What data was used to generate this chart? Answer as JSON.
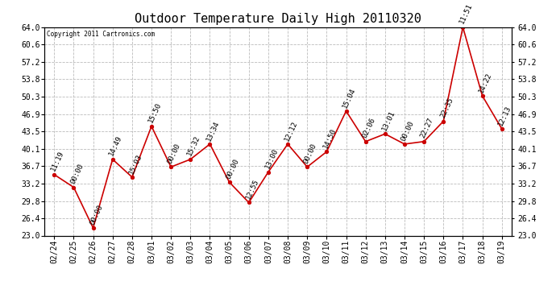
{
  "title": "Outdoor Temperature Daily High 20110320",
  "copyright": "Copyright 2011 Cartronics.com",
  "dates": [
    "02/24",
    "02/25",
    "02/26",
    "02/27",
    "02/28",
    "03/01",
    "03/02",
    "03/03",
    "03/04",
    "03/05",
    "03/06",
    "03/07",
    "03/08",
    "03/09",
    "03/10",
    "03/11",
    "03/12",
    "03/13",
    "03/14",
    "03/15",
    "03/16",
    "03/17",
    "03/18",
    "03/19"
  ],
  "values": [
    35.0,
    32.5,
    24.5,
    38.0,
    34.5,
    44.5,
    36.5,
    38.0,
    41.0,
    33.5,
    29.5,
    35.5,
    41.0,
    36.5,
    39.5,
    47.5,
    41.5,
    43.0,
    41.0,
    41.5,
    45.5,
    64.0,
    50.5,
    44.0
  ],
  "time_labels": [
    "11:19",
    "00:00",
    "00:00",
    "14:49",
    "15:03",
    "15:50",
    "00:00",
    "15:32",
    "13:34",
    "00:00",
    "12:55",
    "13:00",
    "12:12",
    "00:00",
    "14:50",
    "15:04",
    "02:06",
    "13:01",
    "00:00",
    "22:27",
    "22:35",
    "11:51",
    "14:22",
    "12:13"
  ],
  "ylim": [
    23.0,
    64.0
  ],
  "yticks": [
    23.0,
    26.4,
    29.8,
    33.2,
    36.7,
    40.1,
    43.5,
    46.9,
    50.3,
    53.8,
    57.2,
    60.6,
    64.0
  ],
  "line_color": "#cc0000",
  "marker_color": "#cc0000",
  "bg_color": "#ffffff",
  "grid_color": "#bbbbbb",
  "title_fontsize": 11,
  "tick_fontsize": 7,
  "annotation_fontsize": 6.5
}
